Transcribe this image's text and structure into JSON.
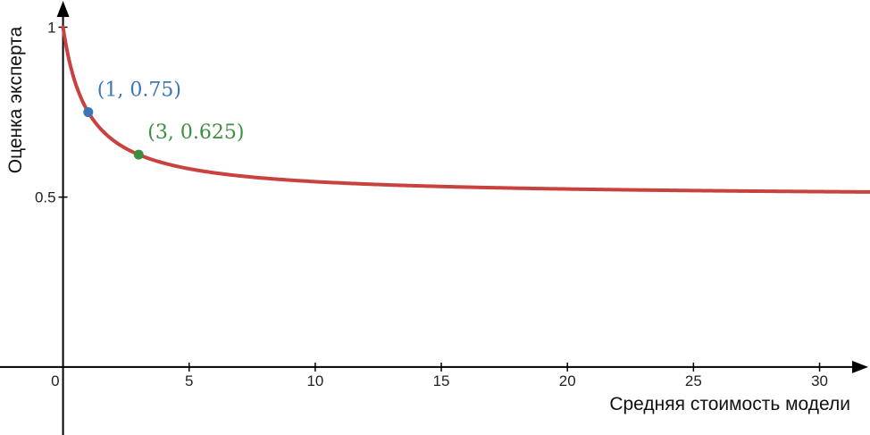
{
  "chart_data": {
    "type": "line",
    "title": "",
    "xlabel": "Средняя стоимость модели",
    "ylabel": "Оценка эксперта",
    "xlim": [
      -2.5,
      32
    ],
    "ylim": [
      -0.2,
      1.08
    ],
    "x_ticks": [
      {
        "value": 0,
        "label": "0"
      },
      {
        "value": 5,
        "label": "5"
      },
      {
        "value": 10,
        "label": "10"
      },
      {
        "value": 15,
        "label": "15"
      },
      {
        "value": 20,
        "label": "20"
      },
      {
        "value": 25,
        "label": "25"
      },
      {
        "value": 30,
        "label": "30"
      }
    ],
    "y_ticks": [
      {
        "value": 0.5,
        "label": "0.5"
      },
      {
        "value": 1,
        "label": "1"
      }
    ],
    "series": [
      {
        "color": "#c8423f",
        "function": "y = 0.5 + 0.5 / (x + 1)",
        "x": [
          0,
          0.25,
          0.5,
          1,
          1.5,
          2,
          3,
          4,
          5,
          6,
          8,
          10,
          12,
          15,
          20,
          25,
          30,
          32
        ],
        "y": [
          1,
          0.9,
          0.833,
          0.75,
          0.7,
          0.667,
          0.625,
          0.6,
          0.583,
          0.571,
          0.556,
          0.545,
          0.538,
          0.531,
          0.524,
          0.519,
          0.516,
          0.515
        ]
      }
    ],
    "highlighted_points": [
      {
        "x": 1,
        "y": 0.75,
        "label": "(1, 0.75)",
        "color": "#3a76b8"
      },
      {
        "x": 3,
        "y": 0.625,
        "label": "(3, 0.625)",
        "color": "#3e8e41"
      }
    ],
    "grid": false,
    "axis_color": "#000000"
  }
}
